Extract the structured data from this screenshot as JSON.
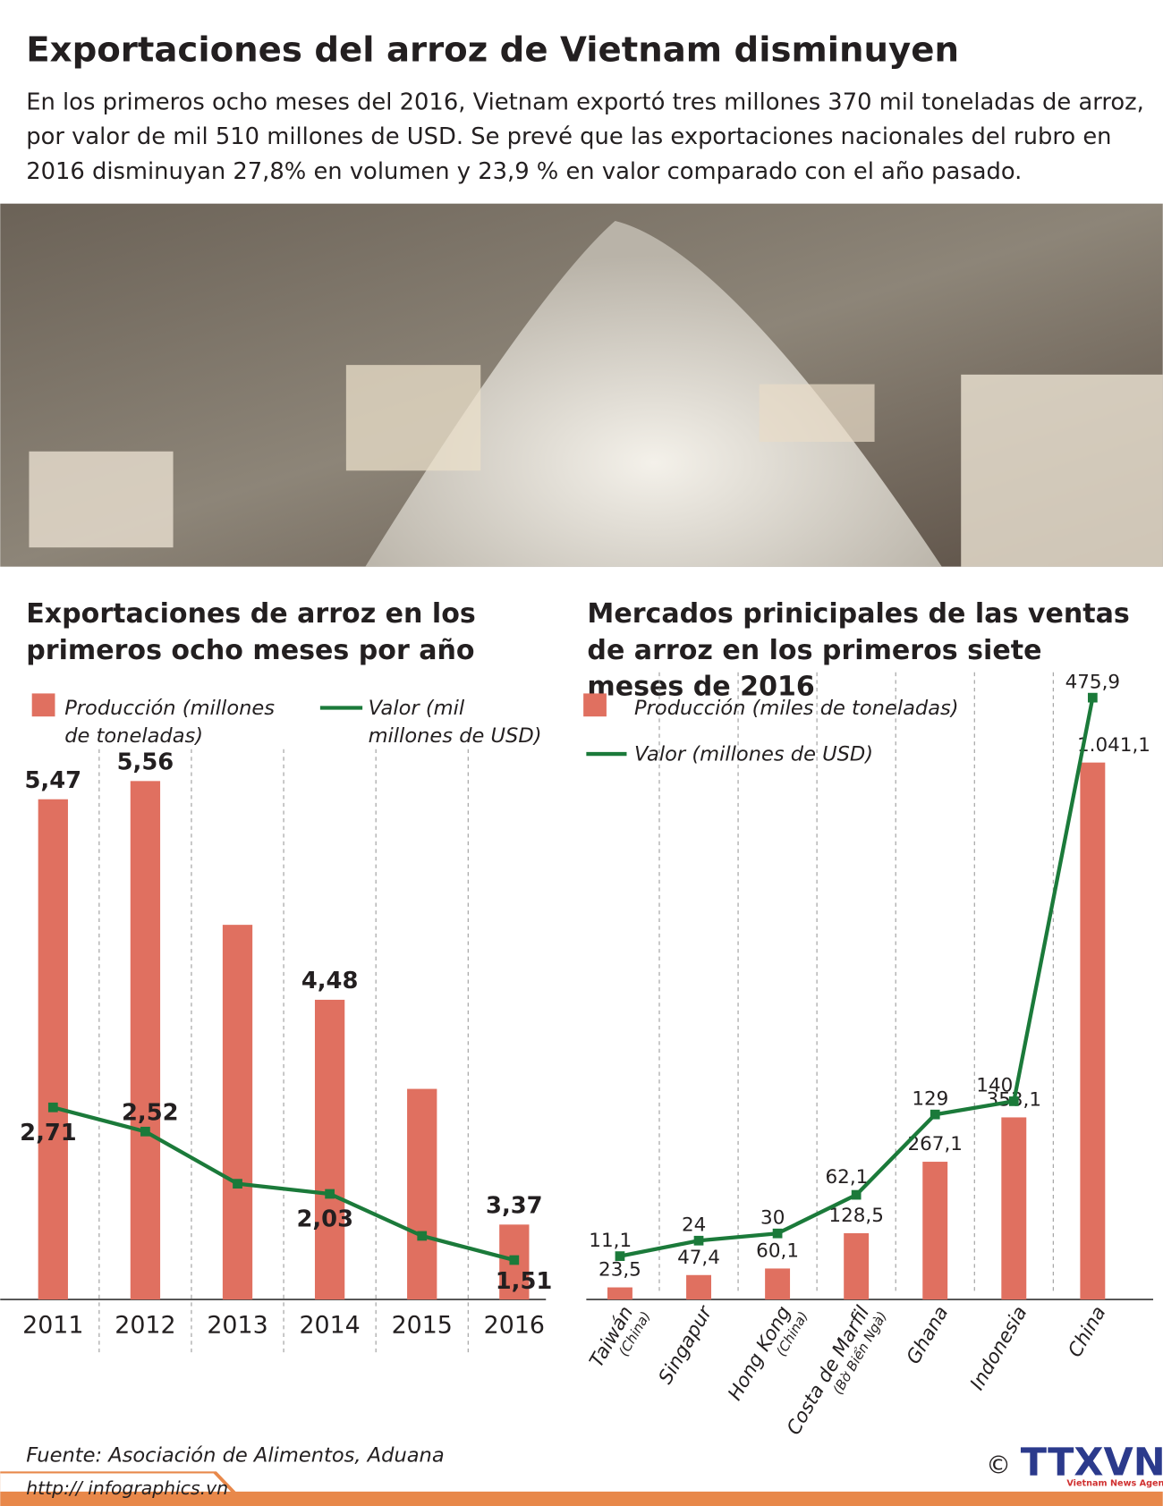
{
  "header": {
    "title": "Exportaciones del arroz de Vietnam disminuyen",
    "intro": [
      "En los primeros ocho meses del 2016,  Vietnam exportó tres millones 370 mil toneladas de arroz,",
      "por valor de mil 510 millones de USD.  Se prevé que las exportaciones nacionales del rubro en",
      "2016 disminuyan 27,8% en volumen y 23,9 % en valor comparado con el año pasado."
    ]
  },
  "chart_data": [
    {
      "type": "bar",
      "title": "Exportaciones de arroz en los primeros ocho meses por año",
      "categories": [
        "2011",
        "2012",
        "2013",
        "2014",
        "2015",
        "2016"
      ],
      "series": [
        {
          "name": "Producción (millones de toneladas)",
          "color": "#e07060",
          "values": [
            5.47,
            5.56,
            4.85,
            4.48,
            4.04,
            3.37
          ],
          "value_labels": [
            "5,47",
            "5,56",
            null,
            "4,48",
            null,
            "3,37"
          ]
        },
        {
          "name": "Valor (mil millones de USD)",
          "type": "line",
          "axis": "y2",
          "color": "#1b7a3a",
          "values": [
            2.71,
            2.52,
            2.11,
            2.03,
            1.7,
            1.51
          ],
          "value_labels": [
            "2,71",
            "2,52",
            null,
            "2,03",
            null,
            "1,51"
          ]
        }
      ],
      "ylim": [
        3,
        5.67
      ],
      "y2lim": [
        1.2,
        5.45
      ]
    },
    {
      "type": "bar",
      "title": "Mercados prinicipales de las ventas de arroz en los primeros siete meses de 2016",
      "categories": [
        "Taiwán",
        "Singapur",
        "Hong Kong",
        "Costa de Marfil",
        "Ghana",
        "Indonesia",
        "China"
      ],
      "category_notes": [
        "(China)",
        null,
        "(China)",
        "(Bờ Biển Ngà)",
        null,
        null,
        null
      ],
      "series": [
        {
          "name": "Producción (miles de toneladas)",
          "color": "#e07060",
          "values": [
            23.5,
            47.4,
            60.1,
            128.5,
            267.1,
            353.1,
            1041.1
          ],
          "value_labels": [
            "23,5",
            "47,4",
            "60,1",
            "128,5",
            "267,1",
            "353,1",
            "1.041,1"
          ]
        },
        {
          "name": "Valor (millones de USD)",
          "type": "line",
          "axis": "y2",
          "color": "#1b7a3a",
          "values": [
            11.1,
            24,
            30,
            62.1,
            129,
            140,
            475.9
          ],
          "value_labels": [
            "11,1",
            "24",
            "30",
            "62,1",
            "129",
            "140",
            "475,9"
          ]
        }
      ],
      "ylim": [
        0,
        1216
      ],
      "y2lim": [
        -25,
        497
      ]
    }
  ],
  "footer": {
    "source": "Fuente: Asociación de Alimentos, Aduana",
    "url": "http:// infographics.vn",
    "copyright": "©",
    "logo": "TTXVN",
    "agency": "Vietnam News Agency"
  }
}
